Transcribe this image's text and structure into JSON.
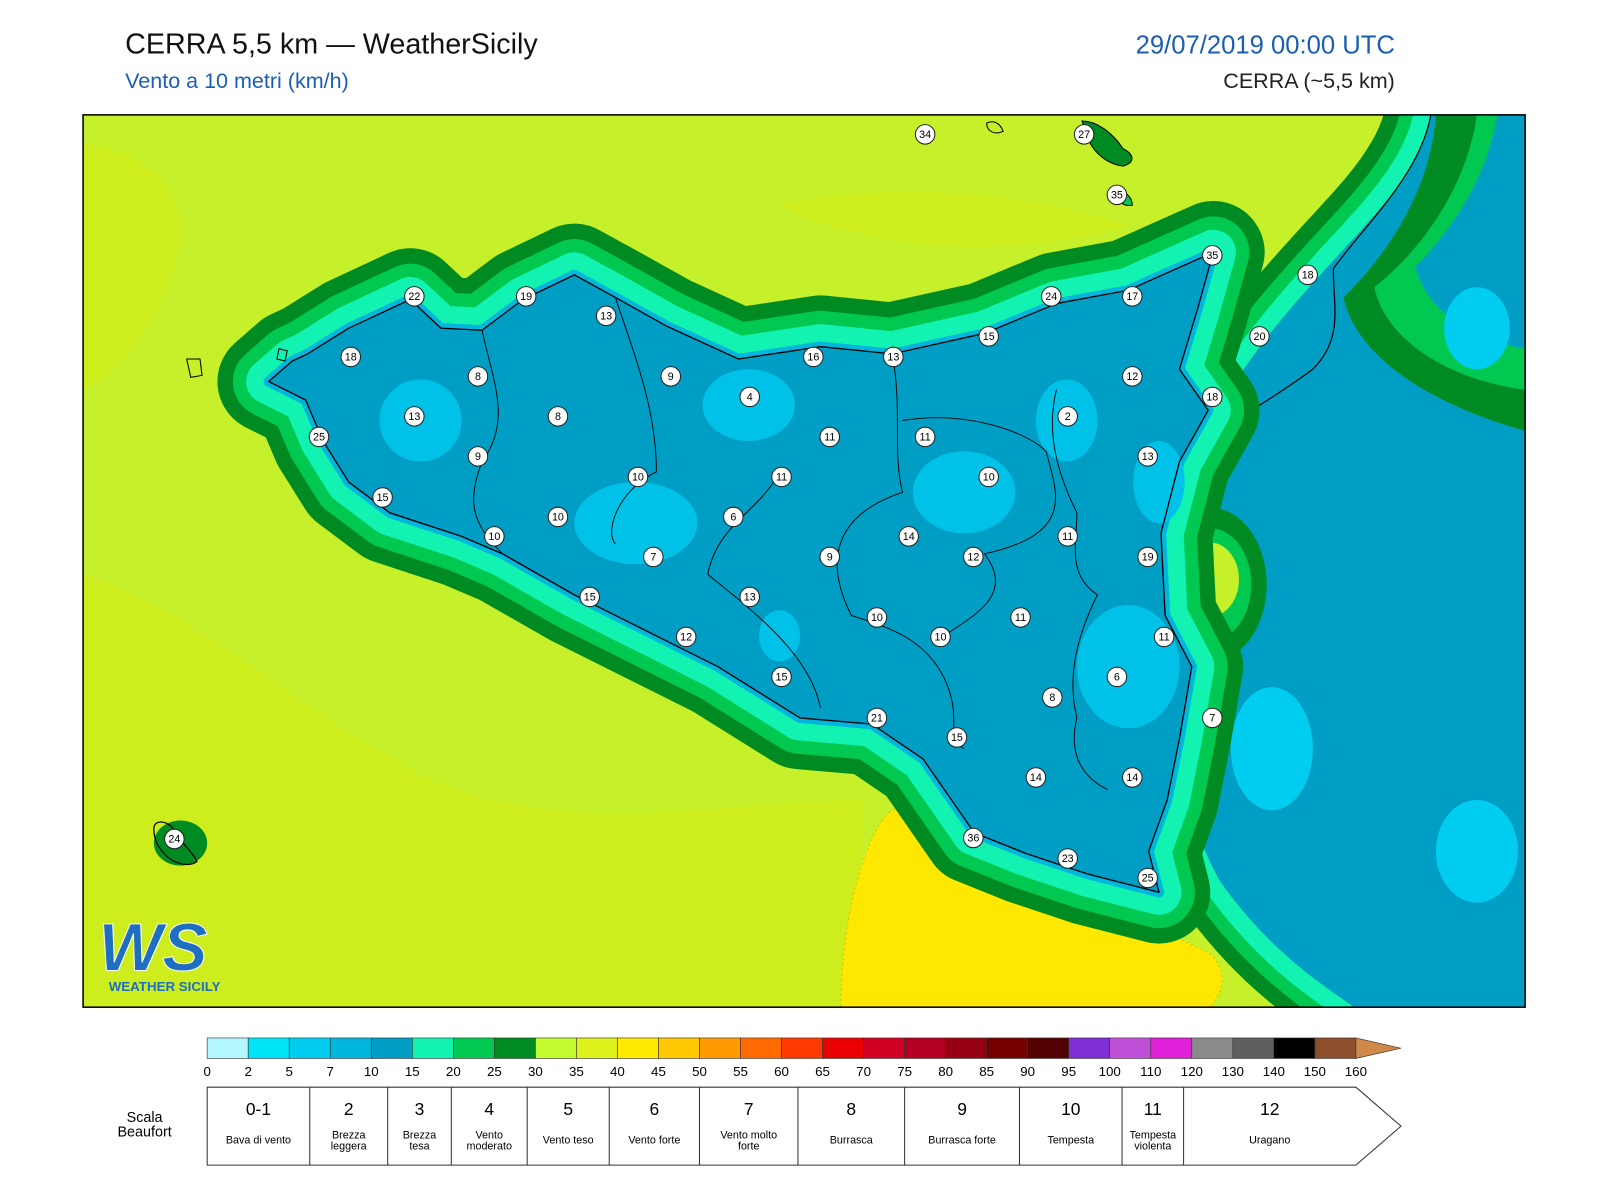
{
  "header": {
    "title": "CERRA 5,5 km — WeatherSicily",
    "subtitle": "Vento a 10 metri (km/h)",
    "datetime": "29/07/2019 00:00 UTC",
    "model": "CERRA (~5,5 km)"
  },
  "map": {
    "station_values": [
      34,
      27,
      35,
      35,
      18,
      22,
      19,
      13,
      24,
      17,
      15,
      20,
      18,
      16,
      13,
      8,
      9,
      12,
      4,
      18,
      13,
      8,
      2,
      25,
      11,
      11,
      9,
      13,
      10,
      11,
      10,
      15,
      10,
      6,
      10,
      14,
      11,
      7,
      9,
      12,
      19,
      15,
      13,
      10,
      11,
      12,
      10,
      11,
      15,
      6,
      8,
      21,
      7,
      15,
      14,
      14,
      24,
      36,
      23,
      25
    ]
  },
  "logo": {
    "mark": "WS",
    "name": "WEATHER SICILY"
  },
  "colorbar": {
    "ticks": [
      0,
      2,
      5,
      7,
      10,
      15,
      20,
      25,
      30,
      35,
      40,
      45,
      50,
      55,
      60,
      65,
      70,
      75,
      80,
      85,
      90,
      95,
      100,
      110,
      120,
      130,
      140,
      150,
      160
    ],
    "colors": [
      "#b4f6ff",
      "#00e4f8",
      "#00cdf0",
      "#00b6dc",
      "#009ec4",
      "#12f2b0",
      "#00c850",
      "#008a22",
      "#c4fa30",
      "#dcf21a",
      "#ffea00",
      "#ffc800",
      "#ff9a00",
      "#ff6a00",
      "#ff3a00",
      "#ea0000",
      "#d20022",
      "#b40020",
      "#960012",
      "#760000",
      "#520000",
      "#7e2ed2",
      "#c050d8",
      "#e020d8",
      "#8a8a8a",
      "#5e5e5e",
      "#000000",
      "#8c4e2c"
    ],
    "arrow_color": "#d08848"
  },
  "beaufort": {
    "label": "Scala Beaufort",
    "classes": [
      {
        "force": "0-1",
        "description": "Bava di vento"
      },
      {
        "force": "2",
        "description": "Brezza leggera"
      },
      {
        "force": "3",
        "description": "Brezza tesa"
      },
      {
        "force": "4",
        "description": "Vento moderato"
      },
      {
        "force": "5",
        "description": "Vento teso"
      },
      {
        "force": "6",
        "description": "Vento forte"
      },
      {
        "force": "7",
        "description": "Vento molto forte"
      },
      {
        "force": "8",
        "description": "Burrasca"
      },
      {
        "force": "9",
        "description": "Burrasca forte"
      },
      {
        "force": "10",
        "description": "Tempesta"
      },
      {
        "force": "11",
        "description": "Tempesta violenta"
      },
      {
        "force": "12",
        "description": "Uragano"
      }
    ]
  }
}
